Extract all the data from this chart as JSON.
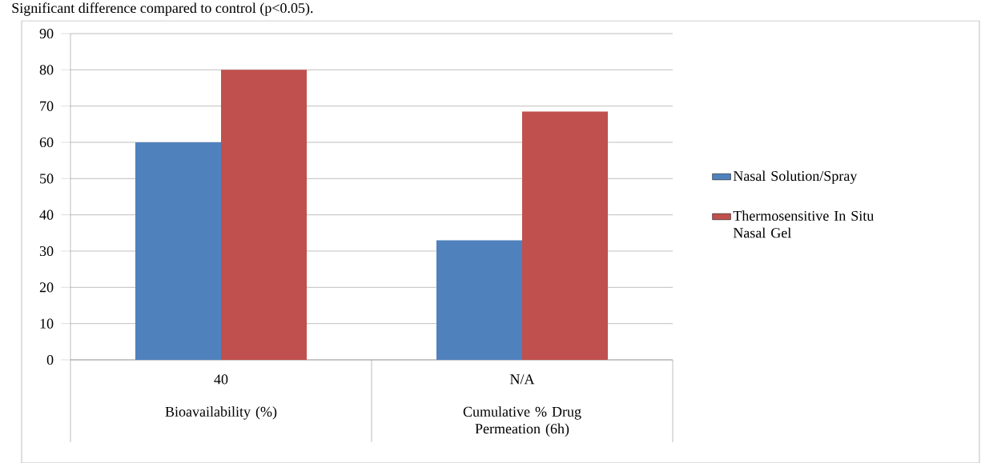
{
  "chart_data": {
    "type": "bar",
    "title": "Significant difference compared to control (p<0.05).",
    "categories": [
      "Bioavailability (%)",
      "Cumulative % Drug Permeation (6h)"
    ],
    "annotations": [
      "40",
      "N/A"
    ],
    "series": [
      {
        "name": "Nasal Solution/Spray",
        "color": "#4f81bd",
        "values": [
          60,
          33
        ]
      },
      {
        "name": "Thermosensitive In Situ Nasal Gel",
        "color": "#c0504d",
        "values": [
          80,
          68.5
        ]
      }
    ],
    "ylim": [
      0,
      90
    ],
    "yticks": [
      0,
      10,
      20,
      30,
      40,
      50,
      60,
      70,
      80,
      90
    ],
    "grid": "y",
    "legend": "right"
  }
}
